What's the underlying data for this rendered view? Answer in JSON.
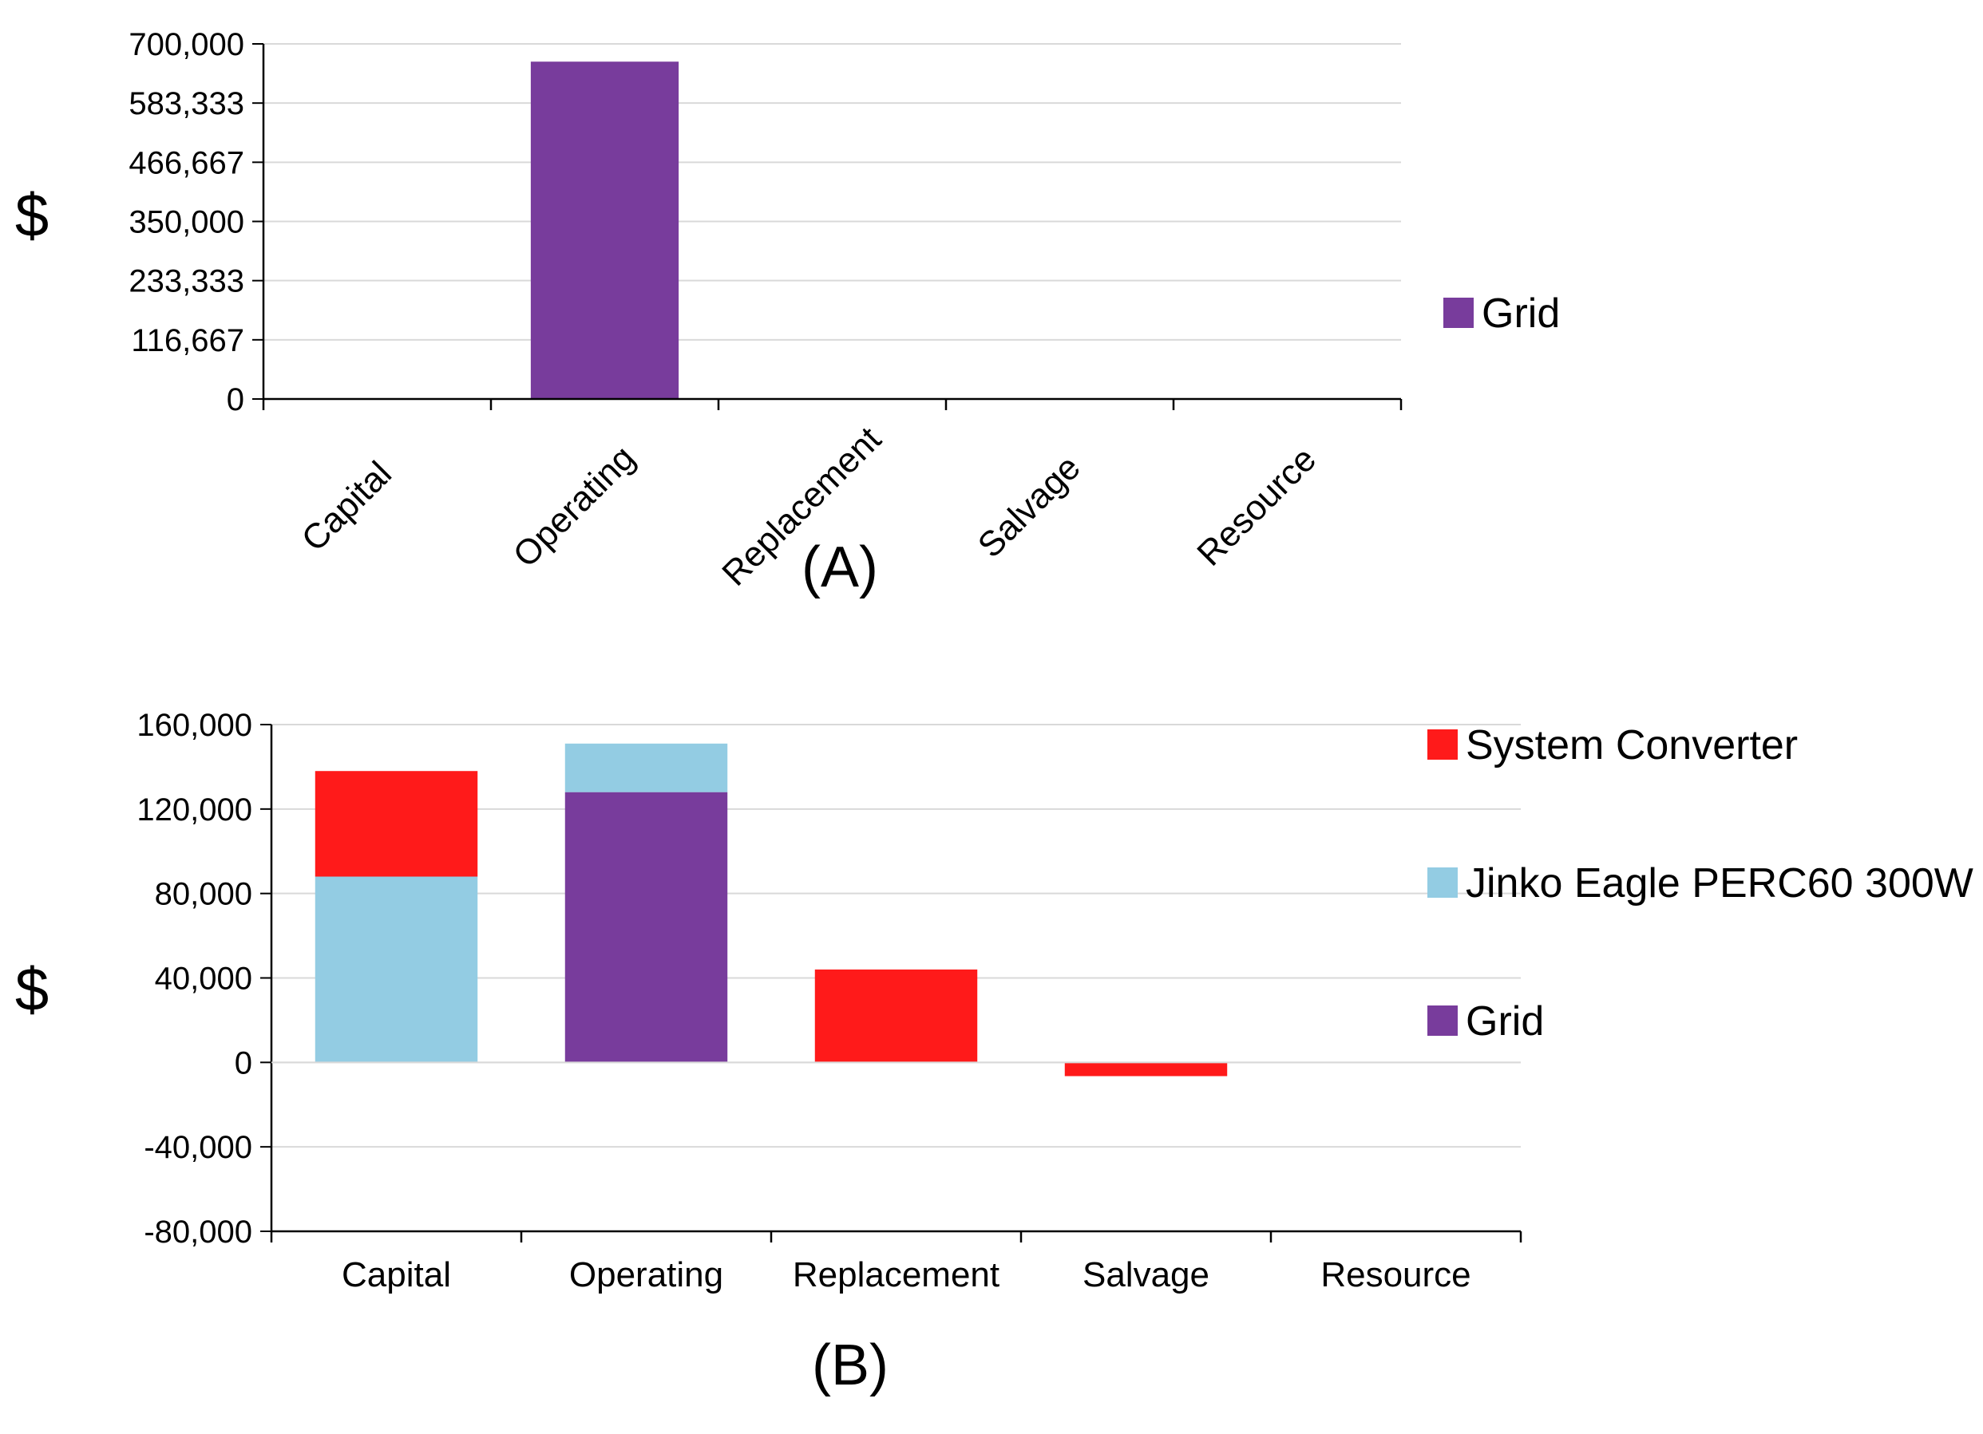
{
  "chart_data": [
    {
      "type": "bar",
      "panel_label": "(A)",
      "ylabel": "$",
      "categories": [
        "Capital",
        "Operating",
        "Replacement",
        "Salvage",
        "Resource"
      ],
      "series": [
        {
          "name": "Grid",
          "color": "#783c9c",
          "values": [
            0,
            665000,
            0,
            0,
            0
          ]
        }
      ],
      "yticks": [
        "700,000",
        "583,333",
        "466,667",
        "350,000",
        "233,333",
        "116,667",
        "0"
      ],
      "ytick_values": [
        700000,
        583333,
        466667,
        350000,
        233333,
        116667,
        0
      ],
      "ylim": [
        0,
        700000
      ],
      "grid": true,
      "category_label_rotation": "rotated",
      "legend": "right"
    },
    {
      "type": "bar",
      "stacked": true,
      "panel_label": "(B)",
      "ylabel": "$",
      "categories": [
        "Capital",
        "Operating",
        "Replacement",
        "Salvage",
        "Resource"
      ],
      "series": [
        {
          "name": "Grid",
          "color": "#783c9c",
          "values": [
            0,
            128000,
            0,
            0,
            0
          ]
        },
        {
          "name": "Jinko Eagle PERC60 300W",
          "color": "#93cce3",
          "values": [
            88000,
            23000,
            0,
            0,
            0
          ]
        },
        {
          "name": "System Converter",
          "color": "#ff1a1a",
          "values": [
            50000,
            0,
            44000,
            -6500,
            0
          ]
        }
      ],
      "legend_order": [
        "System Converter",
        "Jinko Eagle PERC60 300W",
        "Grid"
      ],
      "yticks": [
        "160,000",
        "120,000",
        "80,000",
        "40,000",
        "0",
        "-40,000",
        "-80,000"
      ],
      "ytick_values": [
        160000,
        120000,
        80000,
        40000,
        0,
        -40000,
        -80000
      ],
      "ylim": [
        -80000,
        160000
      ],
      "grid": true,
      "legend": "right"
    }
  ]
}
